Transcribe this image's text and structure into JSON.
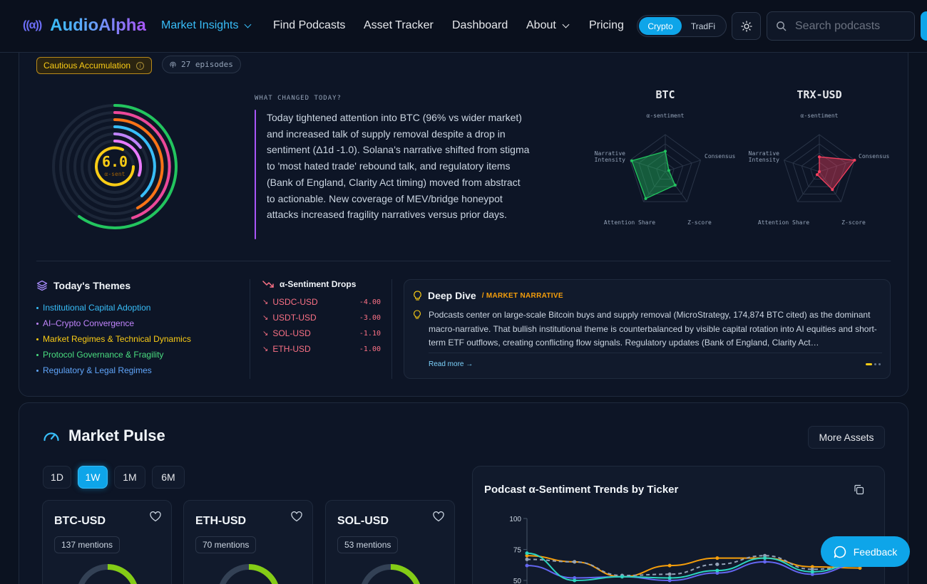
{
  "nav": {
    "logo_mark": "((α))",
    "logo_text": "AudioAlpha",
    "links": [
      "Market Insights",
      "Find Podcasts",
      "Asset Tracker",
      "Dashboard",
      "About",
      "Pricing"
    ],
    "market_toggle": [
      "Crypto",
      "TradFi"
    ],
    "market_toggle_selected": "Crypto",
    "search_placeholder": "Search podcasts"
  },
  "overview": {
    "regime_badge": "Cautious Accumulation",
    "episodes_badge": "27 episodes",
    "alpha_sentiment": {
      "value": "6.0",
      "label": "α-sent"
    },
    "what_changed_label": "WHAT CHANGED TODAY?",
    "what_changed_text": "Today tightened attention into BTC (96% vs wider market) and increased talk of supply removal despite a drop in sentiment (Δ1d -1.0). Solana's narrative shifted from stigma to 'most hated trade' rebound talk, and regulatory items (Bank of England, Clarity Act timing) moved from abstract to actionable. New coverage of MEV/bridge honeypot attacks increased fragility narratives versus prior days.",
    "radars": [
      {
        "ticker": "BTC",
        "axes": [
          "α-sentiment",
          "Consensus",
          "Z-score",
          "Attention Share",
          "Narrative Intensity"
        ],
        "values": [
          0.55,
          0.1,
          0.45,
          0.9,
          0.95
        ],
        "color": "#22c55e"
      },
      {
        "ticker": "TRX-USD",
        "axes": [
          "α-sentiment",
          "Consensus",
          "Z-score",
          "Attention Share",
          "Narrative Intensity"
        ],
        "values": [
          0.4,
          1.0,
          0.6,
          0.1,
          0.0
        ],
        "color": "#f43f5e"
      }
    ]
  },
  "themes": {
    "title": "Today's Themes",
    "items": [
      {
        "label": "Institutional Capital Adoption",
        "color": "#38bdf8"
      },
      {
        "label": "AI–Crypto Convergence",
        "color": "#c084fc"
      },
      {
        "label": "Market Regimes & Technical Dynamics",
        "color": "#facc15"
      },
      {
        "label": "Protocol Governance & Fragility",
        "color": "#4ade80"
      },
      {
        "label": "Regulatory & Legal Regimes",
        "color": "#60a5fa"
      }
    ]
  },
  "drops": {
    "title": "α-Sentiment Drops",
    "rows": [
      {
        "ticker": "USDC-USD",
        "value": "-4.00"
      },
      {
        "ticker": "USDT-USD",
        "value": "-3.00"
      },
      {
        "ticker": "SOL-USD",
        "value": "-1.10"
      },
      {
        "ticker": "ETH-USD",
        "value": "-1.00"
      }
    ]
  },
  "deep_dive": {
    "title": "Deep Dive",
    "subtitle": "/ MARKET NARRATIVE",
    "text": "Podcasts center on large-scale Bitcoin buys and supply removal (MicroStrategy, 174,874 BTC cited) as the dominant macro-narrative. That bullish institutional theme is counterbalanced by visible capital rotation into AI equities and short-term ETF outflows, creating conflicting flow signals. Regulatory updates (Bank of England, Clarity Act…",
    "read_more": "Read more →"
  },
  "pulse": {
    "title": "Market Pulse",
    "more_button": "More Assets",
    "ranges": [
      "1D",
      "1W",
      "1M",
      "6M"
    ],
    "selected_range": "1W",
    "assets": [
      {
        "ticker": "BTC-USD",
        "mentions": "137 mentions",
        "gauge": 0.6
      },
      {
        "ticker": "ETH-USD",
        "mentions": "70 mentions",
        "gauge": 0.6
      },
      {
        "ticker": "SOL-USD",
        "mentions": "53 mentions",
        "gauge": 0.6
      }
    ],
    "trend_title": "Podcast α-Sentiment Trends by Ticker"
  },
  "chart_data": {
    "type": "line",
    "title": "Podcast α-Sentiment Trends by Ticker",
    "y_ticks": [
      100,
      75,
      50
    ],
    "ylim": [
      40,
      100
    ],
    "x": [
      0,
      1,
      2,
      3,
      4,
      5,
      6,
      7
    ],
    "series": [
      {
        "color": "#f59e0b",
        "values": [
          70,
          65,
          53,
          62,
          68,
          68,
          61,
          60
        ]
      },
      {
        "color": "#94a3b8",
        "dashed": true,
        "values": [
          67,
          65,
          54,
          55,
          63,
          70,
          59,
          62
        ]
      },
      {
        "color": "#6366f1",
        "values": [
          62,
          52,
          53,
          50,
          56,
          65,
          55,
          63
        ]
      },
      {
        "color": "#2dd4bf",
        "values": [
          72,
          50,
          53,
          52,
          58,
          68,
          57,
          64
        ]
      }
    ]
  },
  "feedback_label": "Feedback"
}
